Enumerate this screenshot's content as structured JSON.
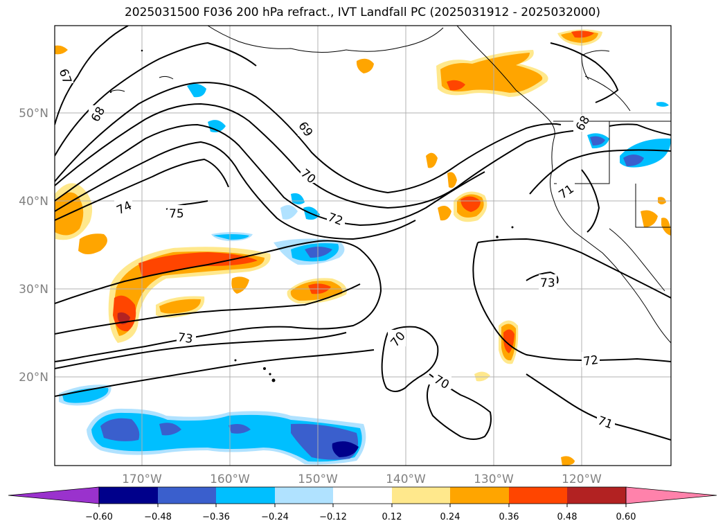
{
  "title": "2025031500 F036 200 hPa refract., IVT Landfall PC (2025031912 - 2025032000)",
  "lat_labels": [
    "50°N",
    "40°N",
    "30°N",
    "20°N"
  ],
  "lon_labels": [
    "170°W",
    "160°W",
    "150°W",
    "140°W",
    "130°W",
    "120°W"
  ],
  "colorbar": {
    "ticks": [
      "−0.60",
      "−0.48",
      "−0.36",
      "−0.24",
      "−0.12",
      "0.12",
      "0.24",
      "0.36",
      "0.48",
      "0.60"
    ],
    "colors": [
      "#9a32cd",
      "#00008b",
      "#3a5fcd",
      "#00bfff",
      "#b0e2ff",
      "#ffffff",
      "#ffe88c",
      "#ffa500",
      "#ff4500",
      "#b22222",
      "#ff82ab"
    ]
  },
  "contour_labels": [
    "67",
    "68",
    "69",
    "70",
    "74",
    "75",
    "72",
    "71",
    "68",
    "73",
    "73",
    "70",
    "70",
    "72",
    "71"
  ]
}
